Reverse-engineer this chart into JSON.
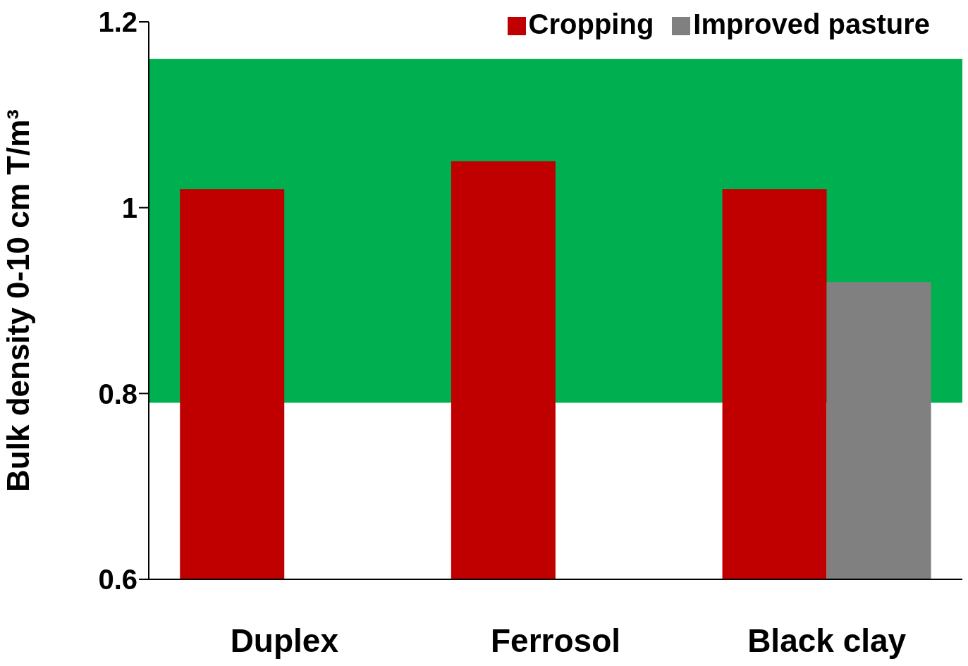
{
  "chart_data": {
    "type": "bar",
    "ylabel": "Bulk density 0-10 cm T/m³",
    "categories": [
      "Duplex",
      "Ferrosol",
      "Black clay"
    ],
    "series": [
      {
        "name": "Cropping",
        "color": "#c00000",
        "values": [
          1.02,
          1.05,
          1.02
        ]
      },
      {
        "name": "Improved pasture",
        "color": "#808080",
        "values": [
          null,
          null,
          0.92
        ]
      }
    ],
    "ylim": [
      0.6,
      1.2
    ],
    "yticks": [
      0.6,
      0.8,
      1,
      1.2
    ],
    "grid": false,
    "legend": "top right",
    "bands": [
      {
        "axis": "y",
        "from": 0.79,
        "to": 1.16,
        "color": "#00b050"
      }
    ]
  }
}
